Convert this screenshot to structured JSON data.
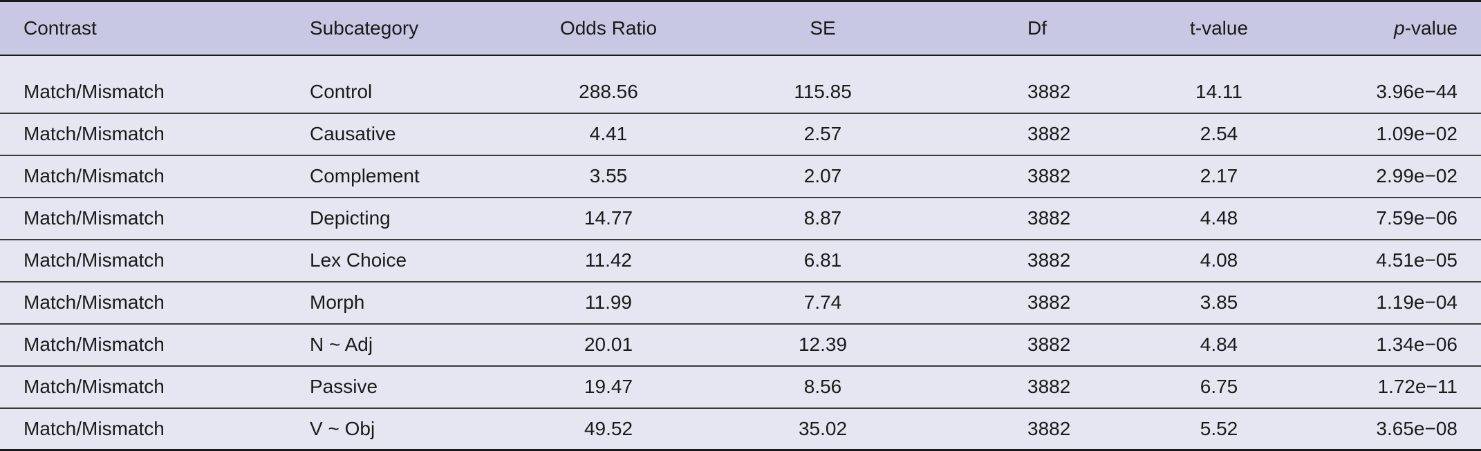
{
  "headers": {
    "contrast": "Contrast",
    "subcategory": "Subcategory",
    "odds_ratio": "Odds Ratio",
    "se": "SE",
    "df": "Df",
    "t_value": "t-value",
    "p_value_italic": "p",
    "p_value_rest": "-value"
  },
  "rows": [
    {
      "contrast": "Match/Mismatch",
      "subcategory": "Control",
      "odds_ratio": "288.56",
      "se": "115.85",
      "df": "3882",
      "t_value": "14.11",
      "p_value": "3.96e−44"
    },
    {
      "contrast": "Match/Mismatch",
      "subcategory": "Causative",
      "odds_ratio": "4.41",
      "se": "2.57",
      "df": "3882",
      "t_value": "2.54",
      "p_value": "1.09e−02"
    },
    {
      "contrast": "Match/Mismatch",
      "subcategory": "Complement",
      "odds_ratio": "3.55",
      "se": "2.07",
      "df": "3882",
      "t_value": "2.17",
      "p_value": "2.99e−02"
    },
    {
      "contrast": "Match/Mismatch",
      "subcategory": "Depicting",
      "odds_ratio": "14.77",
      "se": "8.87",
      "df": "3882",
      "t_value": "4.48",
      "p_value": "7.59e−06"
    },
    {
      "contrast": "Match/Mismatch",
      "subcategory": "Lex Choice",
      "odds_ratio": "11.42",
      "se": "6.81",
      "df": "3882",
      "t_value": "4.08",
      "p_value": "4.51e−05"
    },
    {
      "contrast": "Match/Mismatch",
      "subcategory": "Morph",
      "odds_ratio": "11.99",
      "se": "7.74",
      "df": "3882",
      "t_value": "3.85",
      "p_value": "1.19e−04"
    },
    {
      "contrast": "Match/Mismatch",
      "subcategory": "N ~ Adj",
      "odds_ratio": "20.01",
      "se": "12.39",
      "df": "3882",
      "t_value": "4.84",
      "p_value": "1.34e−06"
    },
    {
      "contrast": "Match/Mismatch",
      "subcategory": "Passive",
      "odds_ratio": "19.47",
      "se": "8.56",
      "df": "3882",
      "t_value": "6.75",
      "p_value": "1.72e−11"
    },
    {
      "contrast": "Match/Mismatch",
      "subcategory": "V ~ Obj",
      "odds_ratio": "49.52",
      "se": "35.02",
      "df": "3882",
      "t_value": "5.52",
      "p_value": "3.65e−08"
    }
  ],
  "colors": {
    "header_bg": "#c8c8e4",
    "row_bg": "#e6e6f3",
    "rule": "#1a1a1a"
  }
}
